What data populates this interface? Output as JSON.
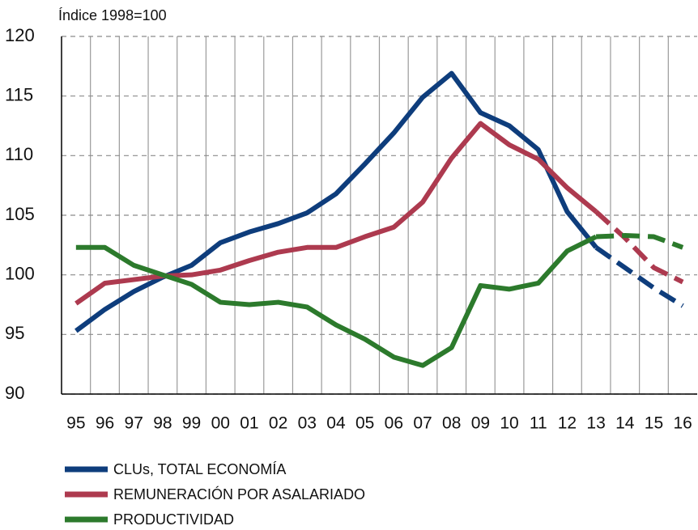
{
  "chart_data": {
    "type": "line",
    "y_axis_label": "Índice 1998=100",
    "categories": [
      "95",
      "96",
      "97",
      "98",
      "99",
      "00",
      "01",
      "02",
      "03",
      "04",
      "05",
      "06",
      "07",
      "08",
      "09",
      "10",
      "11",
      "12",
      "13",
      "14",
      "15",
      "16"
    ],
    "dashed_from": "13",
    "series": [
      {
        "name": "CLUs, TOTAL ECONOMÍA",
        "color": "#0e3d7c",
        "values": [
          95.3,
          97.1,
          98.6,
          99.8,
          100.8,
          102.7,
          103.6,
          104.3,
          105.2,
          106.8,
          109.3,
          111.9,
          114.9,
          116.9,
          113.6,
          112.5,
          110.5,
          105.3,
          102.3,
          100.6,
          98.9,
          97.4
        ]
      },
      {
        "name": "REMUNERACIÓN POR ASALARIADO",
        "color": "#ad3a4f",
        "values": [
          97.6,
          99.3,
          99.6,
          99.9,
          100.0,
          100.4,
          101.2,
          101.9,
          102.3,
          102.3,
          103.2,
          104.0,
          106.1,
          109.8,
          112.7,
          110.9,
          109.7,
          107.3,
          105.3,
          103.1,
          100.6,
          99.4
        ]
      },
      {
        "name": "PRODUCTIVIDAD",
        "color": "#2c7a2c",
        "values": [
          102.3,
          102.3,
          100.8,
          100.0,
          99.2,
          97.7,
          97.5,
          97.7,
          97.3,
          95.8,
          94.6,
          93.1,
          92.4,
          93.9,
          99.1,
          98.8,
          99.3,
          102.0,
          103.2,
          103.3,
          103.2,
          102.3
        ]
      }
    ],
    "ylim": [
      90,
      120
    ],
    "yticks": [
      90,
      95,
      100,
      105,
      110,
      115,
      120
    ],
    "grid": true
  }
}
